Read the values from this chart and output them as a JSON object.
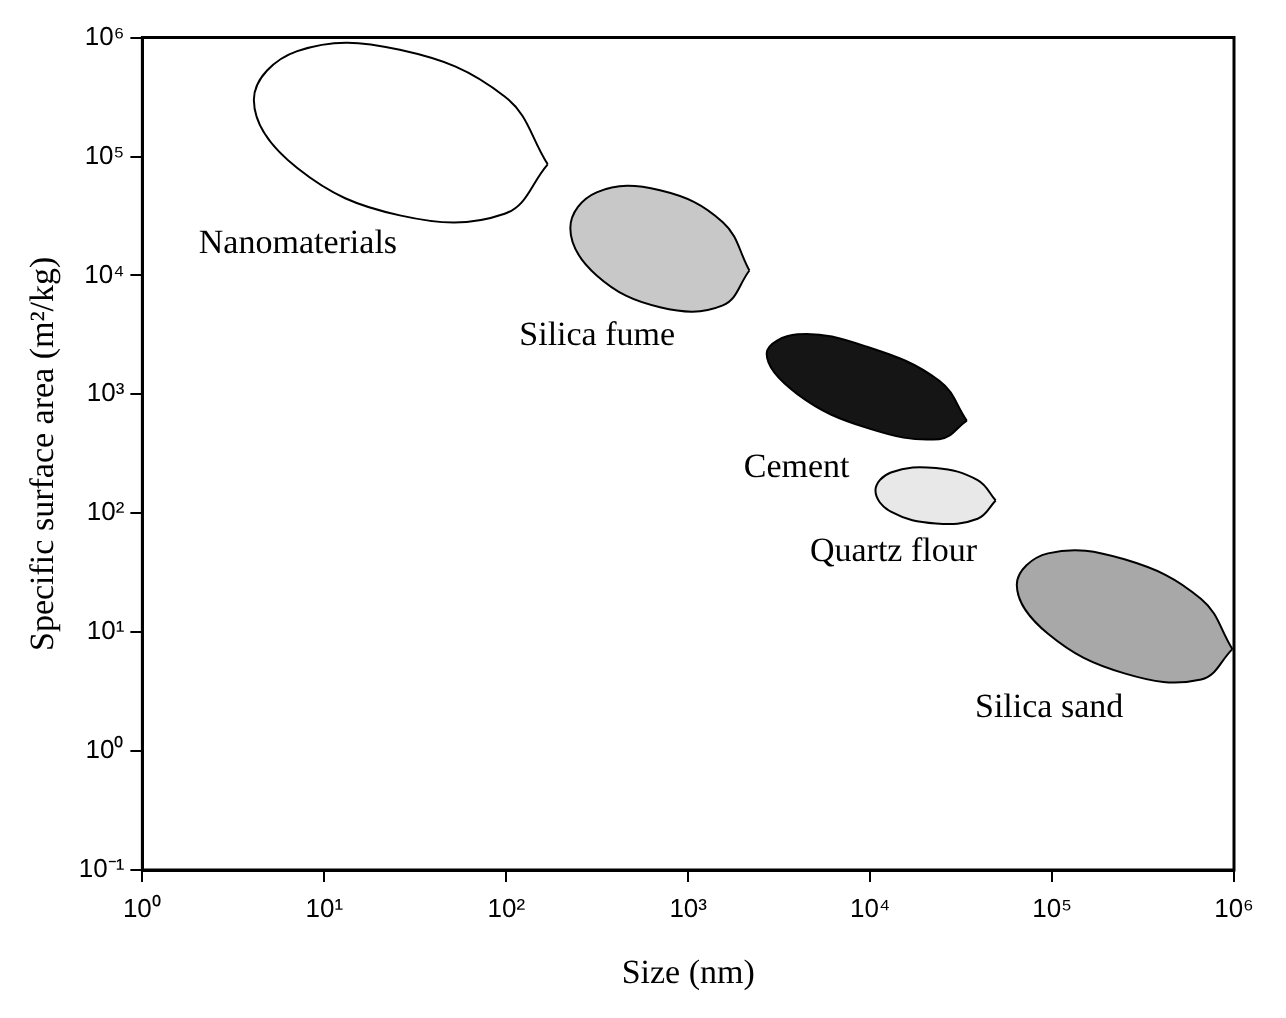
{
  "chart_data": {
    "type": "area",
    "xlabel": "Size (nm)",
    "ylabel": "Specific surface area (m²/kg)",
    "log": "xy",
    "grid": false,
    "legend": false,
    "xlim": [
      1,
      1000000
    ],
    "xticks": [
      {
        "value": 1,
        "label": "10⁰"
      },
      {
        "value": 10,
        "label": "10¹"
      },
      {
        "value": 100,
        "label": "10²"
      },
      {
        "value": 1000,
        "label": "10³"
      },
      {
        "value": 10000,
        "label": "10⁴"
      },
      {
        "value": 100000,
        "label": "10⁵"
      },
      {
        "value": 1000000,
        "label": "10⁶"
      }
    ],
    "ylim": [
      0.1,
      1000000
    ],
    "yticks": [
      {
        "value": 0.1,
        "label": "10⁻¹"
      },
      {
        "value": 1,
        "label": "10⁰"
      },
      {
        "value": 10,
        "label": "10¹"
      },
      {
        "value": 100,
        "label": "10²"
      },
      {
        "value": 1000,
        "label": "10³"
      },
      {
        "value": 10000,
        "label": "10⁴"
      },
      {
        "value": 100000,
        "label": "10⁵"
      },
      {
        "value": 1000000,
        "label": "10⁶"
      }
    ],
    "series": [
      {
        "name": "Nanomaterials",
        "color": "#ffffff",
        "x": [
          169,
          98,
          26,
          7.1,
          4.1,
          7.1,
          26,
          98
        ],
        "values": [
          86000,
          33000,
          32000,
          80000,
          300000,
          770000,
          790000,
          320000
        ]
      },
      {
        "name": "Silica fume",
        "color": "#c8c8c8",
        "x": [
          2170,
          1550,
          700,
          314,
          225,
          314,
          700,
          1550
        ],
        "values": [
          11000,
          5600,
          5400,
          10000,
          25000,
          50000,
          52000,
          28000
        ]
      },
      {
        "name": "Cement",
        "color": "#151515",
        "x": [
          34000,
          24000,
          9700,
          4000,
          2700,
          4000,
          9700,
          24000
        ],
        "values": [
          600,
          420,
          520,
          1000,
          2200,
          3200,
          2500,
          1300
        ]
      },
      {
        "name": "Quartz flour",
        "color": "#e8e8e8",
        "x": [
          49000,
          39000,
          23000,
          13000,
          10700,
          13000,
          23000,
          39000
        ],
        "values": [
          128,
          90,
          82,
          103,
          155,
          220,
          240,
          190
        ]
      },
      {
        "name": "Silica sand",
        "color": "#a8a8a8",
        "x": [
          980000,
          660000,
          250000,
          95000,
          64000,
          95000,
          250000,
          660000
        ],
        "values": [
          7.2,
          4,
          4.5,
          9.7,
          25,
          46,
          41,
          19
        ]
      }
    ]
  }
}
